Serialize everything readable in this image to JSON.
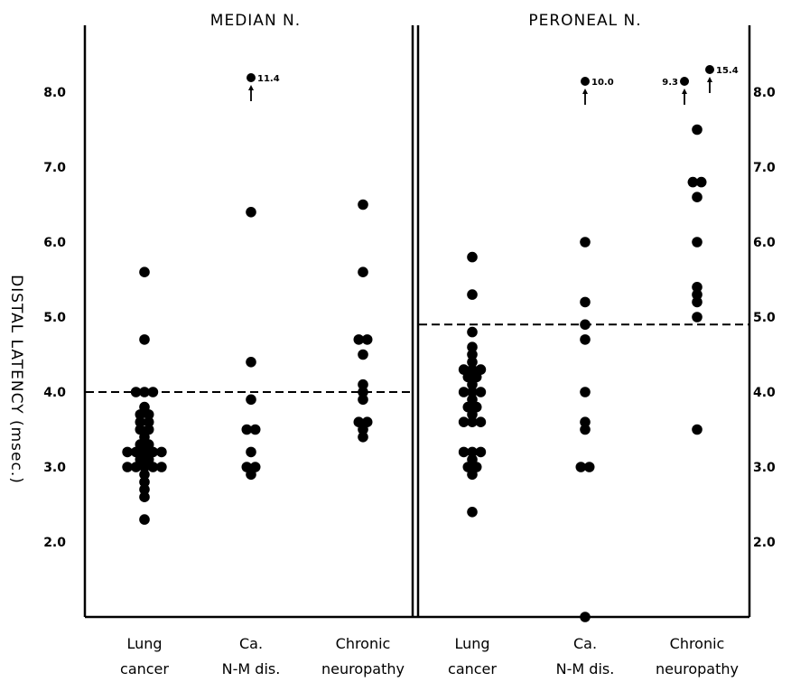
{
  "chart_data": {
    "type": "scatter",
    "ylabel": "DISTAL LATENCY (msec.)",
    "ylim": [
      1.0,
      8.5
    ],
    "grid": false,
    "panels": [
      {
        "title": "MEDIAN N.",
        "yticks": [
          "8.0",
          "7.0",
          "6.0",
          "5.0",
          "4.0",
          "3.0",
          "2.0"
        ],
        "threshold": 4.0,
        "categories": [
          {
            "line1": "Lung",
            "line2": "cancer"
          },
          {
            "line1": "Ca.",
            "line2": "N-M dis."
          },
          {
            "line1": "Chronic",
            "line2": "neuropathy"
          }
        ],
        "groups": [
          [
            2.3,
            2.6,
            2.7,
            2.8,
            2.9,
            3.0,
            3.0,
            3.0,
            3.0,
            3.0,
            3.1,
            3.1,
            3.2,
            3.2,
            3.2,
            3.2,
            3.2,
            3.3,
            3.3,
            3.4,
            3.5,
            3.5,
            3.6,
            3.6,
            3.7,
            3.7,
            3.8,
            4.0,
            4.0,
            4.0,
            4.7,
            5.6
          ],
          [
            2.9,
            3.0,
            3.0,
            3.2,
            3.5,
            3.5,
            3.9,
            4.4,
            6.4
          ],
          [
            3.4,
            3.5,
            3.6,
            3.6,
            3.9,
            4.0,
            4.1,
            4.5,
            4.7,
            4.7,
            5.6,
            6.5
          ]
        ],
        "off_scale": [
          {
            "group": 1,
            "value": 11.4,
            "label": "11.4"
          }
        ]
      },
      {
        "title": "PERONEAL N.",
        "yticks": [
          "8.0",
          "7.0",
          "6.0",
          "5.0",
          "4.0",
          "3.0",
          "2.0"
        ],
        "threshold": 4.9,
        "categories": [
          {
            "line1": "Lung",
            "line2": "cancer"
          },
          {
            "line1": "Ca.",
            "line2": "N-M dis."
          },
          {
            "line1": "Chronic",
            "line2": "neuropathy"
          }
        ],
        "groups": [
          [
            2.4,
            2.9,
            3.0,
            3.0,
            3.1,
            3.2,
            3.2,
            3.2,
            3.6,
            3.6,
            3.6,
            3.7,
            3.8,
            3.8,
            3.9,
            4.0,
            4.0,
            4.0,
            4.1,
            4.2,
            4.2,
            4.3,
            4.3,
            4.3,
            4.4,
            4.5,
            4.6,
            4.8,
            5.3,
            5.8
          ],
          [
            1.0,
            3.0,
            3.0,
            3.5,
            3.6,
            4.0,
            4.7,
            4.9,
            5.2,
            6.0
          ],
          [
            3.5,
            5.0,
            5.2,
            5.3,
            5.4,
            6.0,
            6.6,
            6.8,
            6.8,
            7.5
          ]
        ],
        "off_scale": [
          {
            "group": 1,
            "value": 10.0,
            "label": "10.0"
          },
          {
            "group": 2,
            "value": 9.3,
            "label": "9.3"
          },
          {
            "group": 2,
            "value": 15.4,
            "label": "15.4"
          }
        ]
      }
    ]
  }
}
